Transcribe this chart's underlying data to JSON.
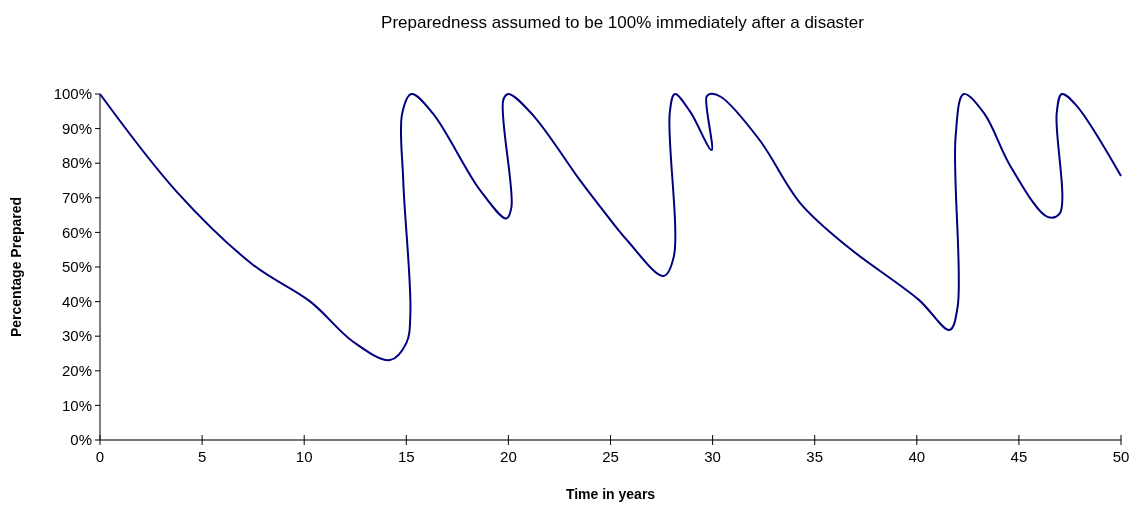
{
  "chart_data": {
    "type": "line",
    "title": "Preparedness assumed to be 100% immediately after a disaster",
    "xlabel": "Time in years",
    "ylabel": "Percentage Prepared",
    "x": [
      0,
      3.75,
      7.5,
      10.3,
      12.4,
      14.2,
      15.0,
      15.2,
      14.85,
      14.8,
      15.25,
      16.3,
      18.6,
      19.9,
      20.15,
      19.75,
      20.0,
      21.2,
      23.5,
      24.5,
      25.8,
      27.6,
      28.1,
      27.9,
      28.15,
      28.9,
      29.95,
      29.7,
      29.87,
      30.4,
      32.3,
      34.3,
      36.6,
      40.1,
      41.6,
      42.0,
      41.9,
      42.3,
      43.3,
      44.6,
      46.4,
      47.0,
      46.85,
      47.1,
      47.8,
      50
    ],
    "series": [
      {
        "color": "#000080",
        "values": [
          100,
          71.8,
          50.6,
          40,
          28.4,
          23.1,
          28,
          36.7,
          75,
          94.4,
          100,
          94.4,
          72.3,
          64,
          67.4,
          98.3,
          100,
          93.9,
          75.1,
          67.4,
          57.8,
          47.4,
          53,
          94.4,
          100,
          94.9,
          83.8,
          99.2,
          100,
          99.2,
          86.7,
          68.4,
          55.9,
          40.5,
          31.8,
          38.5,
          87.7,
          100,
          94.4,
          79,
          64.5,
          65.5,
          94.4,
          100,
          96.8,
          76.3
        ]
      }
    ],
    "xlim": [
      0,
      50
    ],
    "xticks": [
      0,
      5,
      10,
      15,
      20,
      25,
      30,
      35,
      40,
      45,
      50
    ],
    "ylim": [
      0,
      100
    ],
    "yticks": [
      {
        "value": 0,
        "label": "0%"
      },
      {
        "value": 10,
        "label": "10%"
      },
      {
        "value": 20,
        "label": "20%"
      },
      {
        "value": 30,
        "label": "30%"
      },
      {
        "value": 40,
        "label": "40%"
      },
      {
        "value": 50,
        "label": "50%"
      },
      {
        "value": 60,
        "label": "60%"
      },
      {
        "value": 70,
        "label": "70%"
      },
      {
        "value": 80,
        "label": "80%"
      },
      {
        "value": 90,
        "label": "90%"
      },
      {
        "value": 100,
        "label": "100%"
      }
    ],
    "grid": false
  }
}
